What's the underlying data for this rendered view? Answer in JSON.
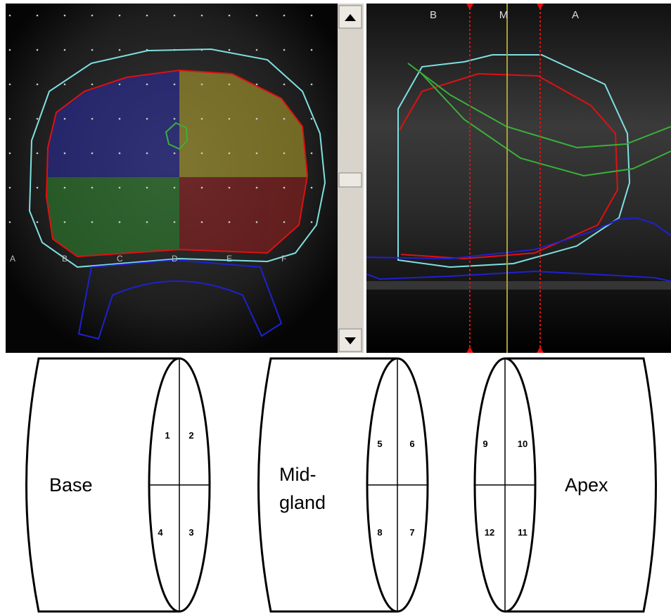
{
  "left_panel": {
    "axis_labels": [
      "A",
      "B",
      "C",
      "D",
      "E",
      "F"
    ]
  },
  "right_panel": {
    "axis_labels": [
      "B",
      "M",
      "A"
    ]
  },
  "diagram": {
    "segments": [
      {
        "label_lines": [
          "Base"
        ],
        "zones": [
          1,
          2,
          4,
          3
        ]
      },
      {
        "label_lines": [
          "Mid-",
          "gland"
        ],
        "zones": [
          5,
          6,
          8,
          7
        ]
      },
      {
        "label_lines": [
          "Apex"
        ],
        "zones": [
          9,
          10,
          12,
          11
        ]
      }
    ]
  }
}
